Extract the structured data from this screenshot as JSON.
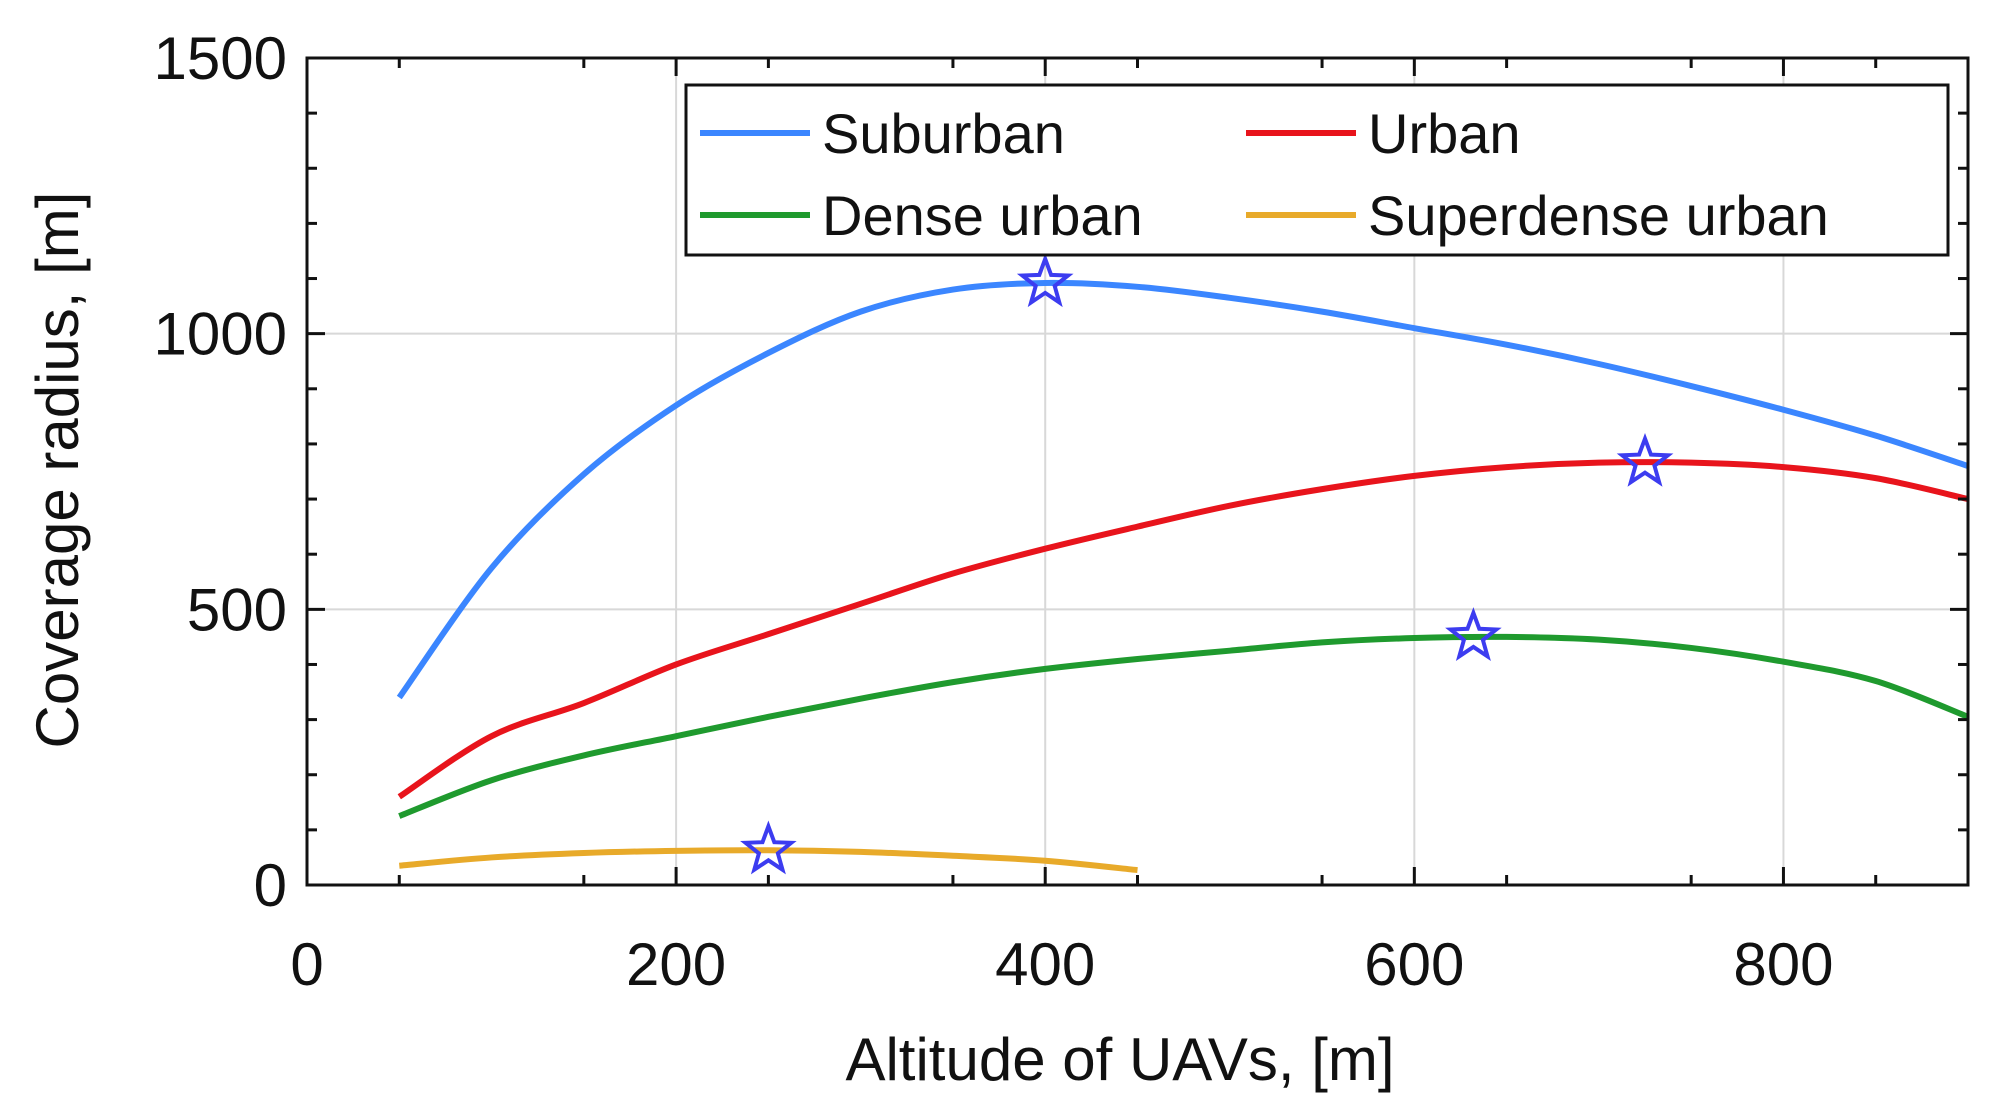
{
  "chart_data": {
    "type": "line",
    "title": "",
    "xlabel": "Altitude of UAVs, [m]",
    "ylabel": "Coverage radius, [m]",
    "xlim": [
      0,
      900
    ],
    "ylim": [
      0,
      1500
    ],
    "xticks": [
      0,
      200,
      400,
      600,
      800
    ],
    "yticks": [
      0,
      500,
      1000,
      1500
    ],
    "grid": true,
    "legend_position": "top-right",
    "series": [
      {
        "name": "Suburban",
        "color": "#3b86ff",
        "x": [
          50,
          100,
          150,
          200,
          250,
          300,
          350,
          400,
          450,
          500,
          550,
          600,
          650,
          700,
          750,
          800,
          850,
          900
        ],
        "values": [
          340,
          575,
          745,
          870,
          965,
          1040,
          1080,
          1092,
          1085,
          1065,
          1040,
          1010,
          980,
          945,
          905,
          862,
          815,
          760
        ],
        "optimum": {
          "x": 400,
          "y": 1092
        }
      },
      {
        "name": "Urban",
        "color": "#e8141c",
        "x": [
          50,
          100,
          150,
          200,
          250,
          300,
          350,
          400,
          450,
          500,
          550,
          600,
          650,
          700,
          750,
          800,
          850,
          900
        ],
        "values": [
          160,
          270,
          330,
          400,
          455,
          510,
          565,
          610,
          650,
          688,
          718,
          742,
          758,
          766,
          766,
          758,
          738,
          700
        ],
        "optimum": {
          "x": 725,
          "y": 766
        }
      },
      {
        "name": "Dense urban",
        "color": "#1f9a2e",
        "x": [
          50,
          100,
          150,
          200,
          250,
          300,
          350,
          400,
          450,
          500,
          550,
          600,
          650,
          700,
          750,
          800,
          850,
          900
        ],
        "values": [
          125,
          190,
          235,
          270,
          305,
          338,
          368,
          392,
          410,
          425,
          440,
          448,
          450,
          445,
          430,
          405,
          370,
          305
        ],
        "optimum": {
          "x": 632,
          "y": 450
        }
      },
      {
        "name": "Superdense urban",
        "color": "#e8aa2a",
        "x": [
          50,
          100,
          150,
          200,
          250,
          300,
          350,
          400,
          450
        ],
        "values": [
          35,
          50,
          58,
          62,
          63,
          60,
          53,
          44,
          27
        ],
        "optimum": {
          "x": 250,
          "y": 63
        }
      }
    ],
    "marker": {
      "shape": "star",
      "color": "#3c3cf0"
    }
  }
}
